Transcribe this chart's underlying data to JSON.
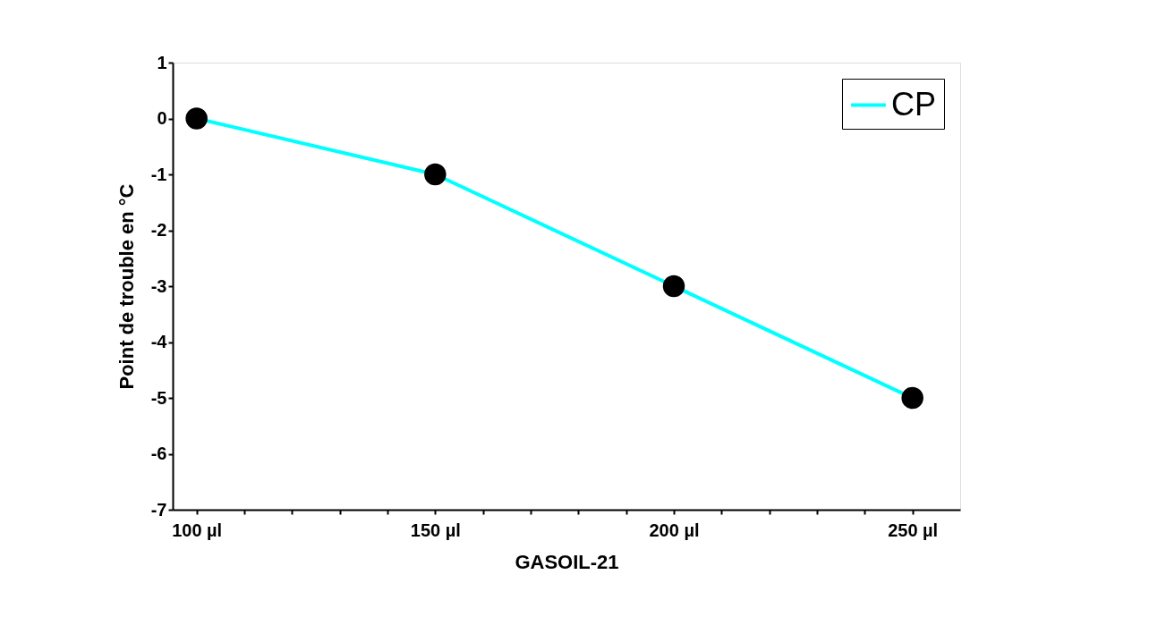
{
  "chart_data": {
    "type": "line",
    "xlabel": "GASOIL-21",
    "ylabel": "Point  de trouble en °C",
    "x": [
      100,
      150,
      200,
      250
    ],
    "series": [
      {
        "name": "CP",
        "color": "#00ffff",
        "values": [
          0,
          -1,
          -3,
          -5
        ]
      }
    ],
    "xlim": [
      95,
      260
    ],
    "xticks": [
      {
        "value": 100,
        "label": "100 µl"
      },
      {
        "value": 110,
        "label": null
      },
      {
        "value": 120,
        "label": null
      },
      {
        "value": 130,
        "label": null
      },
      {
        "value": 140,
        "label": null
      },
      {
        "value": 150,
        "label": "150 µl"
      },
      {
        "value": 160,
        "label": null
      },
      {
        "value": 170,
        "label": null
      },
      {
        "value": 180,
        "label": null
      },
      {
        "value": 190,
        "label": null
      },
      {
        "value": 200,
        "label": "200 µl"
      },
      {
        "value": 210,
        "label": null
      },
      {
        "value": 220,
        "label": null
      },
      {
        "value": 230,
        "label": null
      },
      {
        "value": 240,
        "label": null
      },
      {
        "value": 250,
        "label": "250 µl"
      }
    ],
    "ylim": [
      -7,
      1
    ],
    "yticks": [
      -7,
      -6,
      -5,
      -4,
      -3,
      -2,
      -1,
      0,
      1
    ],
    "marker": "circle",
    "line_style": "solid",
    "legend": "top right",
    "grid": false
  }
}
